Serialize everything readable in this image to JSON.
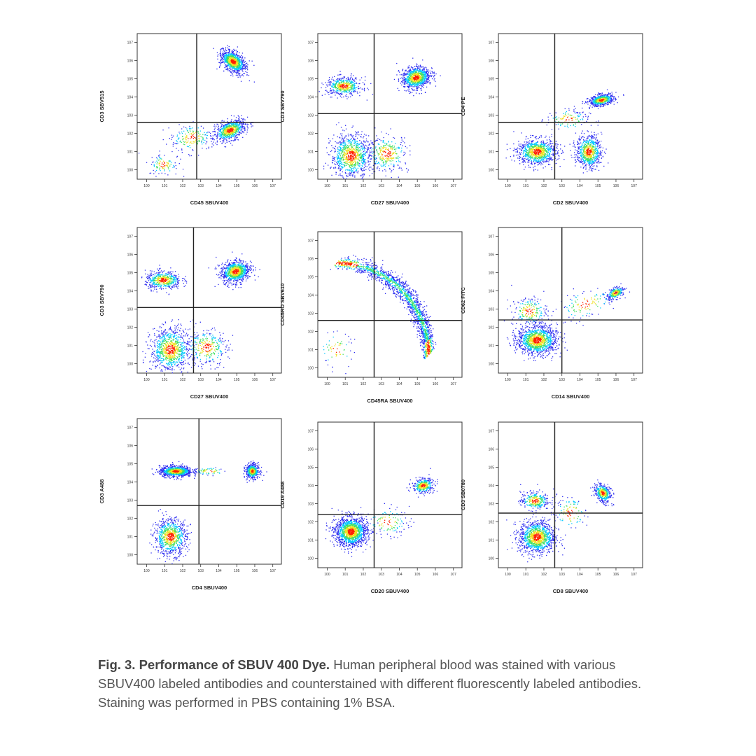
{
  "chart_data": [
    {
      "type": "scatter",
      "scale": "log",
      "xlabel": "CD45 SBUV400",
      "ylabel": "CD3 SBV515",
      "xlim": [
        0.3,
        30000000
      ],
      "ylim": [
        0.3,
        30000000
      ],
      "gate": {
        "x": 600,
        "y": 400
      },
      "colors": [
        "#2e2ef0",
        "#00c8ff",
        "#40e060",
        "#f0e020",
        "#ff2000"
      ],
      "populations": [
        {
          "x": 60000,
          "y": 900000,
          "n": 900,
          "sx": 0.25,
          "sy": 0.4,
          "rot": 0.9
        },
        {
          "x": 40000,
          "y": 150,
          "n": 700,
          "sx": 0.45,
          "sy": 0.25,
          "rot": 0.4
        },
        {
          "x": 300,
          "y": 60,
          "n": 180,
          "sx": 0.6,
          "sy": 0.4,
          "rot": 0.2
        },
        {
          "x": 8,
          "y": 2,
          "n": 100,
          "sx": 0.4,
          "sy": 0.3,
          "rot": 0
        }
      ]
    },
    {
      "type": "scatter",
      "scale": "log",
      "xlabel": "CD27 SBUV400",
      "ylabel": "CD3 SBV790",
      "xlim": [
        0.3,
        30000000
      ],
      "ylim": [
        0.3,
        30000000
      ],
      "gate": {
        "x": 400,
        "y": 1200
      },
      "colors": [
        "#2e2ef0",
        "#00c8ff",
        "#40e060",
        "#f0e020",
        "#ff2000"
      ],
      "populations": [
        {
          "x": 80000,
          "y": 120000,
          "n": 900,
          "sx": 0.4,
          "sy": 0.3,
          "rot": 0.3
        },
        {
          "x": 8,
          "y": 40000,
          "n": 500,
          "sx": 0.5,
          "sy": 0.25,
          "rot": 0
        },
        {
          "x": 20,
          "y": 6,
          "n": 900,
          "sx": 0.55,
          "sy": 0.6,
          "rot": 0
        },
        {
          "x": 2000,
          "y": 8,
          "n": 300,
          "sx": 0.6,
          "sy": 0.5,
          "rot": 0
        }
      ]
    },
    {
      "type": "scatter",
      "scale": "log",
      "xlabel": "CD2 SBUV400",
      "ylabel": "CD4 PE",
      "xlim": [
        0.3,
        30000000
      ],
      "ylim": [
        0.3,
        30000000
      ],
      "gate": {
        "x": 400,
        "y": 400
      },
      "colors": [
        "#2e2ef0",
        "#00c8ff",
        "#40e060",
        "#f0e020",
        "#ff2000"
      ],
      "populations": [
        {
          "x": 150000,
          "y": 7000,
          "n": 600,
          "sx": 0.35,
          "sy": 0.15,
          "rot": 0.2
        },
        {
          "x": 40,
          "y": 10,
          "n": 900,
          "sx": 0.55,
          "sy": 0.35,
          "rot": 0
        },
        {
          "x": 30000,
          "y": 10,
          "n": 700,
          "sx": 0.35,
          "sy": 0.45,
          "rot": 0
        },
        {
          "x": 2000,
          "y": 600,
          "n": 120,
          "sx": 0.6,
          "sy": 0.3,
          "rot": 0
        }
      ]
    },
    {
      "type": "scatter",
      "scale": "log",
      "xlabel": "CD27 SBUV400",
      "ylabel": "CD3 SBV790",
      "xlim": [
        0.3,
        30000000
      ],
      "ylim": [
        0.3,
        30000000
      ],
      "gate": {
        "x": 400,
        "y": 1200
      },
      "colors": [
        "#2e2ef0",
        "#00c8ff",
        "#40e060",
        "#f0e020",
        "#ff2000"
      ],
      "populations": [
        {
          "x": 80000,
          "y": 120000,
          "n": 900,
          "sx": 0.4,
          "sy": 0.3,
          "rot": 0.3
        },
        {
          "x": 8,
          "y": 40000,
          "n": 500,
          "sx": 0.5,
          "sy": 0.25,
          "rot": 0
        },
        {
          "x": 20,
          "y": 6,
          "n": 900,
          "sx": 0.55,
          "sy": 0.6,
          "rot": 0
        },
        {
          "x": 2000,
          "y": 8,
          "n": 300,
          "sx": 0.6,
          "sy": 0.5,
          "rot": 0
        }
      ]
    },
    {
      "type": "scatter",
      "scale": "log",
      "xlabel": "CD45RA SBUV400",
      "ylabel": "CD45RO SBV610",
      "xlim": [
        0.3,
        30000000
      ],
      "ylim": [
        0.3,
        30000000
      ],
      "gate": {
        "x": 400,
        "y": 400
      },
      "colors": [
        "#2e2ef0",
        "#00c8ff",
        "#40e060",
        "#f0e020",
        "#ff2000"
      ],
      "arc": {
        "n": 1800,
        "x0": 3,
        "y0": 600000,
        "x1": 400000,
        "y1": 5
      },
      "populations": [
        {
          "x": 3,
          "y": 10,
          "n": 60,
          "sx": 0.5,
          "sy": 0.5,
          "rot": 0
        }
      ]
    },
    {
      "type": "scatter",
      "scale": "log",
      "xlabel": "CD14 SBUV400",
      "ylabel": "CD62 FITC",
      "xlim": [
        0.3,
        30000000
      ],
      "ylim": [
        0.3,
        30000000
      ],
      "gate": {
        "x": 1000,
        "y": 250
      },
      "colors": [
        "#2e2ef0",
        "#00c8ff",
        "#40e060",
        "#f0e020",
        "#ff2000"
      ],
      "populations": [
        {
          "x": 40,
          "y": 20,
          "n": 1200,
          "sx": 0.55,
          "sy": 0.4,
          "rot": 0
        },
        {
          "x": 900000,
          "y": 8000,
          "n": 250,
          "sx": 0.25,
          "sy": 0.15,
          "rot": 0.5
        },
        {
          "x": 20000,
          "y": 2000,
          "n": 120,
          "sx": 0.8,
          "sy": 0.4,
          "rot": 0.3
        },
        {
          "x": 15,
          "y": 800,
          "n": 200,
          "sx": 0.5,
          "sy": 0.4,
          "rot": 0
        }
      ]
    },
    {
      "type": "scatter",
      "scale": "log",
      "xlabel": "CD4 SBUV400",
      "ylabel": "CD3 A488",
      "xlim": [
        0.3,
        30000000
      ],
      "ylim": [
        0.3,
        30000000
      ],
      "gate": {
        "x": 800,
        "y": 500
      },
      "colors": [
        "#2e2ef0",
        "#00c8ff",
        "#40e060",
        "#f0e020",
        "#ff2000"
      ],
      "populations": [
        {
          "x": 40,
          "y": 40000,
          "n": 900,
          "sx": 0.45,
          "sy": 0.15,
          "rot": 0
        },
        {
          "x": 700000,
          "y": 40000,
          "n": 500,
          "sx": 0.18,
          "sy": 0.2,
          "rot": 0.2
        },
        {
          "x": 20,
          "y": 10,
          "n": 800,
          "sx": 0.45,
          "sy": 0.5,
          "rot": 0
        },
        {
          "x": 3000,
          "y": 40000,
          "n": 60,
          "sx": 0.5,
          "sy": 0.12,
          "rot": 0
        }
      ]
    },
    {
      "type": "scatter",
      "scale": "log",
      "xlabel": "CD20 SBUV400",
      "ylabel": "CD19 A488",
      "xlim": [
        0.3,
        30000000
      ],
      "ylim": [
        0.3,
        30000000
      ],
      "gate": {
        "x": 400,
        "y": 250
      },
      "colors": [
        "#2e2ef0",
        "#00c8ff",
        "#40e060",
        "#f0e020",
        "#ff2000"
      ],
      "populations": [
        {
          "x": 20,
          "y": 30,
          "n": 1400,
          "sx": 0.45,
          "sy": 0.4,
          "rot": 0
        },
        {
          "x": 200000,
          "y": 10000,
          "n": 350,
          "sx": 0.3,
          "sy": 0.2,
          "rot": 0.2
        },
        {
          "x": 2000,
          "y": 100,
          "n": 120,
          "sx": 0.6,
          "sy": 0.4,
          "rot": 0
        }
      ]
    },
    {
      "type": "scatter",
      "scale": "log",
      "xlabel": "CD8 SBUV400",
      "ylabel": "CD3 SB0780",
      "xlim": [
        0.3,
        30000000
      ],
      "ylim": [
        0.3,
        30000000
      ],
      "gate": {
        "x": 400,
        "y": 300
      },
      "colors": [
        "#2e2ef0",
        "#00c8ff",
        "#40e060",
        "#f0e020",
        "#ff2000"
      ],
      "populations": [
        {
          "x": 40,
          "y": 15,
          "n": 1100,
          "sx": 0.5,
          "sy": 0.45,
          "rot": 0
        },
        {
          "x": 30,
          "y": 1500,
          "n": 300,
          "sx": 0.4,
          "sy": 0.25,
          "rot": 0
        },
        {
          "x": 180000,
          "y": 4000,
          "n": 400,
          "sx": 0.2,
          "sy": 0.28,
          "rot": 0.6
        },
        {
          "x": 3000,
          "y": 300,
          "n": 100,
          "sx": 0.5,
          "sy": 0.5,
          "rot": 0.5
        }
      ]
    }
  ],
  "caption": {
    "bold": "Fig. 3. Performance of SBUV 400 Dye.",
    "text": " Human peripheral blood was stained with various SBUV400 labeled antibodies and counterstained with  different fluorescently labeled antibodies. Staining was performed  in PBS containing 1% BSA."
  }
}
